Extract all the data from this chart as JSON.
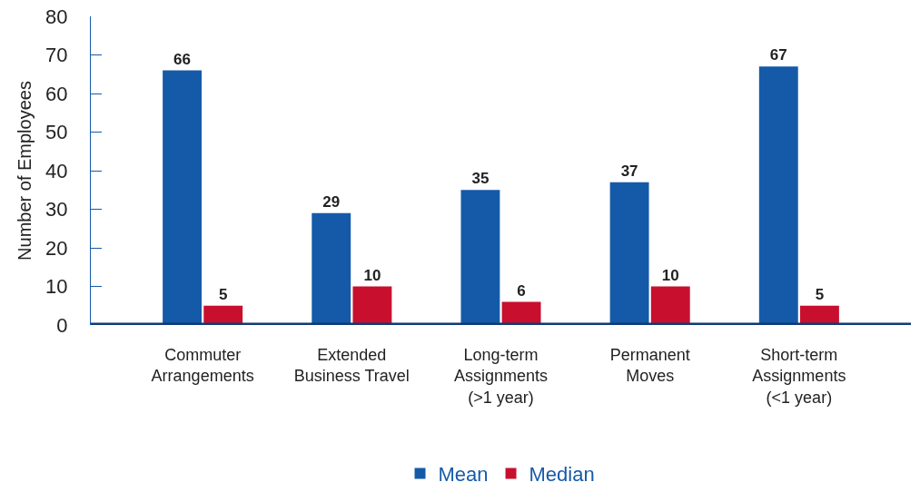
{
  "chart_data": {
    "type": "bar",
    "ylabel": "Number of Employees",
    "categories": [
      "Commuter\nArrangements",
      "Extended\nBusiness Travel",
      "Long-term\nAssignments\n(>1 year)",
      "Permanent\nMoves",
      "Short-term\nAssignments\n(<1 year)"
    ],
    "series": [
      {
        "name": "Mean",
        "color": "#155aa8",
        "values": [
          66,
          29,
          35,
          37,
          67
        ]
      },
      {
        "name": "Median",
        "color": "#c8102e",
        "values": [
          5,
          10,
          6,
          10,
          5
        ]
      }
    ],
    "ylim": [
      0,
      80
    ],
    "yticks": [
      0,
      10,
      20,
      30,
      40,
      50,
      60,
      70,
      80
    ],
    "grid": false,
    "legend": "bottom",
    "data_labels": true
  }
}
